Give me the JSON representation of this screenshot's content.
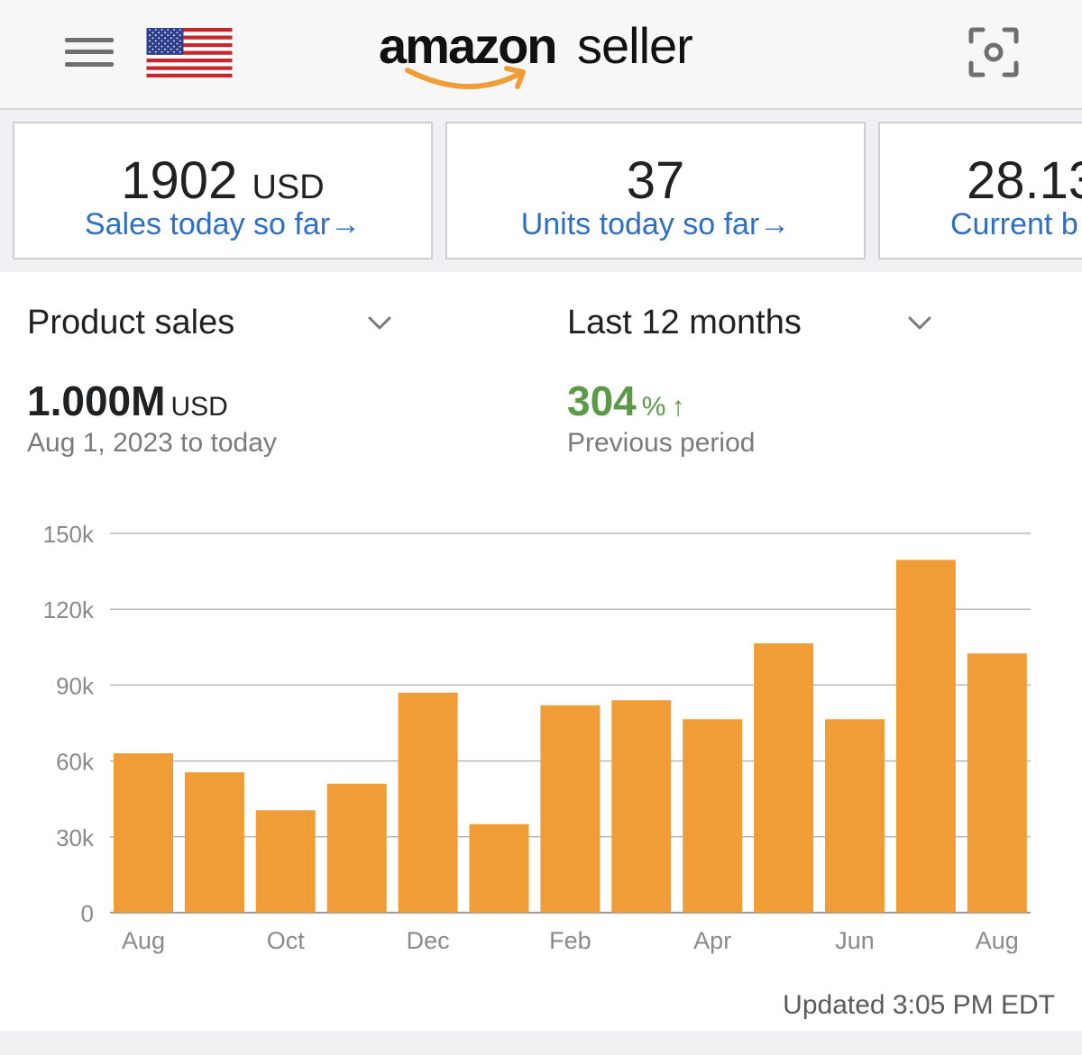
{
  "header": {
    "logo_primary": "amazon",
    "logo_secondary": "seller",
    "menu_icon": "hamburger-menu-icon",
    "flag": "us-flag",
    "scan_icon": "camera-scan-icon"
  },
  "cards": [
    {
      "value": "1902",
      "unit": "USD",
      "label": "Sales today so far",
      "arrow": "→"
    },
    {
      "value": "37",
      "unit": "",
      "label": "Units today so far",
      "arrow": "→"
    },
    {
      "value": "28.13",
      "unit": "",
      "label": "Current b",
      "arrow": ""
    }
  ],
  "metric_selector": {
    "label": "Product sales"
  },
  "period_selector": {
    "label": "Last 12 months"
  },
  "summary": {
    "value": "1.000M",
    "unit": "USD",
    "range": "Aug 1, 2023 to today",
    "change_value": "304",
    "change_unit": "%",
    "change_arrow": "↑",
    "change_label": "Previous period"
  },
  "updated": "Updated 3:05 PM EDT",
  "colors": {
    "bar": "#f09c37",
    "link": "#2f6fc2",
    "positive": "#5b9a47",
    "logo_smile": "#f09c37"
  },
  "chart_data": {
    "type": "bar",
    "categories": [
      "Aug",
      "Sep",
      "Oct",
      "Nov",
      "Dec",
      "Jan",
      "Feb",
      "Mar",
      "Apr",
      "May",
      "Jun",
      "Jul",
      "Aug"
    ],
    "values": [
      63000,
      55500,
      40500,
      51000,
      87000,
      35000,
      82000,
      84000,
      76500,
      106500,
      76500,
      139500,
      102500
    ],
    "x_tick_labels": [
      "Aug",
      "",
      "Oct",
      "",
      "Dec",
      "",
      "Feb",
      "",
      "Apr",
      "",
      "Jun",
      "",
      "Aug"
    ],
    "y_ticks": [
      0,
      30000,
      60000,
      90000,
      120000,
      150000
    ],
    "y_tick_labels": [
      "0",
      "30k",
      "60k",
      "90k",
      "120k",
      "150k"
    ],
    "ylim": [
      0,
      150000
    ],
    "grid": true,
    "title": "",
    "xlabel": "",
    "ylabel": ""
  }
}
